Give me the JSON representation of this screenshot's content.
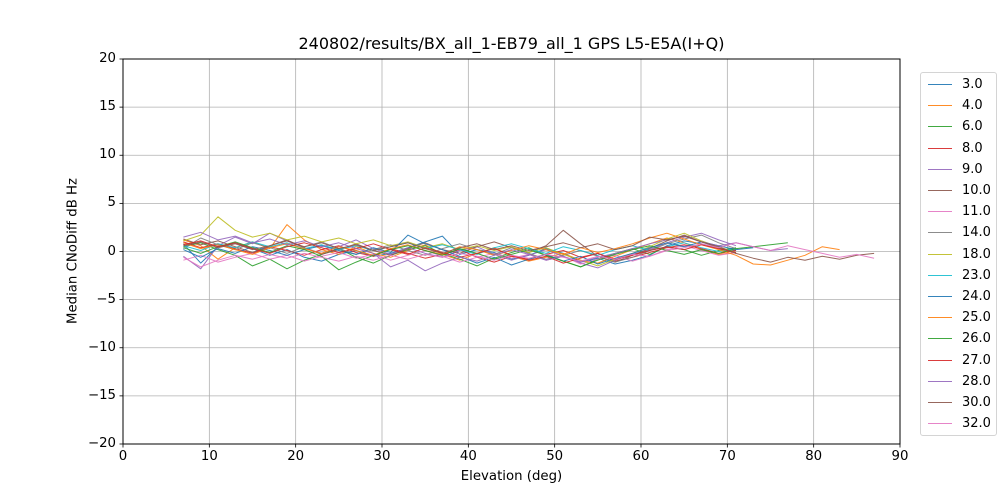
{
  "chart": {
    "title": "240802/results/BX_all_1-EB79_all_1 GPS L5-E5A(I+Q)",
    "xlabel": "Elevation (deg)",
    "ylabel": "Median CNoDiff dB Hz"
  },
  "colors": {
    "grid": "#b0b0b0",
    "spine": "#000000",
    "background": "#ffffff",
    "legend_border": "#d4d4d4"
  },
  "chart_data": {
    "type": "line",
    "title": "240802/results/BX_all_1-EB79_all_1 GPS L5-E5A(I+Q)",
    "xlabel": "Elevation (deg)",
    "ylabel": "Median CNoDiff dB Hz",
    "xlim": [
      0,
      90
    ],
    "ylim": [
      -20,
      20
    ],
    "x_ticks": [
      0,
      10,
      20,
      30,
      40,
      50,
      60,
      70,
      80,
      90
    ],
    "x_tick_labels": [
      "0",
      "10",
      "20",
      "30",
      "40",
      "50",
      "60",
      "70",
      "80",
      "90"
    ],
    "y_ticks": [
      -20,
      -15,
      -10,
      -5,
      0,
      5,
      10,
      15,
      20
    ],
    "y_tick_labels": [
      "−20",
      "−15",
      "−10",
      "−5",
      "0",
      "5",
      "10",
      "15",
      "20"
    ],
    "grid": true,
    "legend_position": "outside-right",
    "x_start": 7,
    "x_step": 2,
    "series": [
      {
        "name": "3.0",
        "color": "#1f77b4",
        "values": [
          0.8,
          -1.2,
          0.5,
          0.9,
          0.3,
          -0.4,
          0.2,
          -0.6,
          -1.0,
          -0.3,
          0.1,
          -0.5,
          -0.2,
          0.4,
          1.0,
          1.6,
          -0.3,
          0.2,
          -0.1,
          -0.8,
          -0.4,
          0.3,
          -0.2,
          -1.1,
          -0.7,
          -1.3,
          -0.9,
          -0.4,
          0.6,
          1.1,
          0.8,
          0.3,
          0.1
        ]
      },
      {
        "name": "4.0",
        "color": "#ff7f0e",
        "values": [
          1.2,
          0.6,
          -0.8,
          0.4,
          1.0,
          0.3,
          2.8,
          1.2,
          0.2,
          -0.3,
          0.5,
          -0.2,
          -0.6,
          0.1,
          0.7,
          -0.3,
          -0.9,
          -0.2,
          0.4,
          -0.5,
          -1.0,
          -0.6,
          -0.2,
          -0.9,
          -1.2,
          -0.5,
          0.2,
          0.8,
          1.4,
          0.9,
          0.2,
          -0.3,
          -0.1
        ]
      },
      {
        "name": "6.0",
        "color": "#2ca02c",
        "values": [
          0.5,
          0.9,
          0.2,
          -0.4,
          -1.5,
          -0.8,
          -1.8,
          -0.9,
          -0.3,
          0.3,
          -0.6,
          -1.2,
          -0.4,
          0.2,
          0.6,
          -0.2,
          -0.8,
          -1.5,
          -0.7,
          -0.1,
          0.4,
          -0.4,
          -1.0,
          -1.6,
          -0.8,
          -0.2,
          0.3,
          -0.3,
          0.5,
          0.2,
          -0.4,
          0.1,
          0.4
        ]
      },
      {
        "name": "8.0",
        "color": "#d62728",
        "values": [
          1.0,
          0.4,
          0.8,
          0.3,
          -0.2,
          0.5,
          0.1,
          -0.4,
          0.2,
          0.6,
          -0.1,
          -0.5,
          0.3,
          -0.2,
          -0.7,
          -0.3,
          0.2,
          -0.6,
          -1.1,
          -0.5,
          -0.8,
          -0.3,
          0.1,
          -0.6,
          -0.2,
          -1.0,
          -0.6,
          -0.1,
          0.4,
          0.7,
          0.3,
          -0.2,
          0.1
        ]
      },
      {
        "name": "9.0",
        "color": "#9467bd",
        "values": [
          -0.5,
          -1.8,
          0.6,
          1.5,
          0.8,
          1.9,
          1.1,
          0.4,
          -0.2,
          0.5,
          1.2,
          0.3,
          -0.3,
          0.4,
          -0.2,
          -0.6,
          0.1,
          0.5,
          -0.3,
          -0.9,
          -0.4,
          0.2,
          -0.5,
          -1.2,
          -1.7,
          -0.9,
          -0.3,
          0.2,
          0.9,
          1.5,
          1.9,
          1.2,
          0.6
        ]
      },
      {
        "name": "10.0",
        "color": "#8c564b",
        "values": [
          1.3,
          0.7,
          1.1,
          0.5,
          -0.1,
          0.6,
          1.2,
          0.4,
          -0.3,
          0.2,
          0.8,
          0.1,
          -0.4,
          0.3,
          0.9,
          0.2,
          -0.2,
          0.5,
          1.0,
          0.4,
          -0.1,
          0.6,
          2.2,
          0.8,
          -0.5,
          -1.1,
          -0.4,
          0.3,
          1.1,
          1.7,
          1.0,
          0.4,
          -0.2
        ]
      },
      {
        "name": "11.0",
        "color": "#e377c2",
        "values": [
          -0.9,
          -0.4,
          -1.1,
          -0.6,
          -0.2,
          -0.8,
          -0.4,
          -1.0,
          -0.5,
          -0.1,
          -0.7,
          -0.3,
          -0.9,
          -0.4,
          0.1,
          -0.5,
          -1.1,
          -0.6,
          -0.2,
          -0.7,
          -0.3,
          -0.9,
          -0.5,
          -1.3,
          -0.8,
          -0.4,
          -1.0,
          -0.5,
          0.2,
          0.6,
          0.1,
          -0.4,
          -0.1
        ]
      },
      {
        "name": "14.0",
        "color": "#7f7f7f",
        "values": [
          0.3,
          1.4,
          0.7,
          0.2,
          0.9,
          0.4,
          -0.2,
          0.5,
          1.0,
          0.3,
          -0.3,
          0.2,
          0.7,
          0.1,
          -0.4,
          0.3,
          0.8,
          0.2,
          -0.3,
          0.4,
          -0.2,
          -0.8,
          -0.4,
          0.1,
          -0.5,
          -1.1,
          -0.6,
          0.1,
          0.8,
          1.3,
          1.7,
          0.9,
          0.3
        ]
      },
      {
        "name": "18.0",
        "color": "#bcbd22",
        "values": [
          1.1,
          1.7,
          3.6,
          2.2,
          1.5,
          1.9,
          1.2,
          1.6,
          1.0,
          1.4,
          0.8,
          1.2,
          0.6,
          1.0,
          0.4,
          0.8,
          0.2,
          0.6,
          0.1,
          0.5,
          -0.1,
          0.4,
          -0.3,
          -0.9,
          -1.5,
          -0.8,
          -0.2,
          0.5,
          1.3,
          1.9,
          1.1,
          0.5,
          -0.1
        ]
      },
      {
        "name": "23.0",
        "color": "#17becf",
        "values": [
          0.6,
          0.1,
          0.8,
          0.4,
          1.0,
          0.5,
          0.9,
          0.3,
          0.7,
          0.2,
          0.6,
          0.1,
          0.5,
          0.9,
          0.3,
          0.7,
          0.2,
          -0.3,
          0.4,
          0.8,
          0.3,
          -0.2,
          0.5,
          0.1,
          -0.4,
          0.2,
          0.6,
          0.1,
          0.5,
          0.9,
          0.4,
          0.0,
          0.3
        ]
      },
      {
        "name": "24.0",
        "color": "#1f77b4",
        "values": [
          0.2,
          -0.6,
          0.3,
          -0.2,
          0.5,
          0.1,
          -0.4,
          0.2,
          0.6,
          0.1,
          -0.3,
          0.4,
          -0.1,
          1.7,
          0.8,
          0.2,
          -0.5,
          -1.2,
          -0.6,
          -1.4,
          -0.8,
          -0.3,
          -1.0,
          -0.5,
          -1.3,
          -0.7,
          -0.2,
          0.4,
          0.9,
          0.5,
          1.0,
          0.6,
          0.2,
          0.4
        ]
      },
      {
        "name": "25.0",
        "color": "#ff7f0e",
        "values": [
          0.9,
          0.3,
          0.7,
          0.2,
          -0.3,
          0.4,
          0.8,
          0.3,
          -0.2,
          0.5,
          0.1,
          -0.4,
          0.3,
          0.7,
          0.1,
          -0.3,
          0.5,
          0.2,
          -0.4,
          0.1,
          0.6,
          0.2,
          -0.3,
          0.4,
          -0.1,
          0.3,
          0.8,
          1.4,
          1.9,
          1.3,
          0.7,
          0.2,
          -0.4,
          -1.3,
          -1.4,
          -0.9,
          -0.4,
          0.5,
          0.2
        ]
      },
      {
        "name": "26.0",
        "color": "#2ca02c",
        "values": [
          0.4,
          -0.2,
          0.5,
          1.0,
          0.4,
          -0.1,
          0.6,
          0.2,
          -0.5,
          -1.9,
          -1.1,
          -0.4,
          0.2,
          0.6,
          0.1,
          -0.4,
          0.3,
          -0.2,
          -0.8,
          -0.3,
          0.2,
          -0.4,
          -1.0,
          -1.6,
          -0.9,
          -0.3,
          0.2,
          0.6,
          0.1,
          -0.3,
          0.2,
          -0.2,
          0.3,
          0.5,
          0.7,
          0.9
        ]
      },
      {
        "name": "27.0",
        "color": "#d62728",
        "values": [
          0.7,
          1.1,
          0.5,
          0.9,
          0.3,
          -0.2,
          0.5,
          0.9,
          0.4,
          -0.1,
          0.3,
          0.8,
          0.2,
          -0.3,
          0.4,
          -0.1,
          -0.6,
          -0.2,
          0.3,
          -0.4,
          -0.9,
          -0.5,
          -1.2,
          -0.7,
          -0.2,
          -0.8,
          -0.4,
          0.1,
          0.5,
          0.2,
          0.7,
          0.3,
          -0.1
        ]
      },
      {
        "name": "28.0",
        "color": "#9467bd",
        "values": [
          1.5,
          2.0,
          1.2,
          1.6,
          0.9,
          1.3,
          0.7,
          1.1,
          0.5,
          0.9,
          0.3,
          -0.2,
          -1.6,
          -0.9,
          -2.0,
          -1.2,
          -0.6,
          -1.0,
          -0.4,
          0.2,
          -0.3,
          -0.9,
          -0.5,
          -1.1,
          -0.6,
          -0.2,
          0.3,
          0.8,
          1.2,
          1.6,
          1.0,
          0.6,
          0.9,
          0.5,
          0.1,
          0.3
        ]
      },
      {
        "name": "30.0",
        "color": "#8c564b",
        "values": [
          0.6,
          1.0,
          0.4,
          0.8,
          0.2,
          0.6,
          1.1,
          0.5,
          0.9,
          0.3,
          0.7,
          0.1,
          0.5,
          0.9,
          0.3,
          -0.2,
          0.4,
          0.8,
          0.2,
          0.6,
          0.1,
          0.5,
          0.9,
          0.4,
          0.8,
          0.2,
          0.6,
          1.5,
          1.2,
          1.6,
          1.0,
          0.5,
          -0.2,
          -0.7,
          -1.1,
          -0.6,
          -0.9,
          -0.5,
          -0.8,
          -0.4,
          -0.2
        ]
      },
      {
        "name": "32.0",
        "color": "#e377c2",
        "values": [
          -0.6,
          -1.6,
          -0.9,
          -0.4,
          -0.8,
          -0.3,
          -0.7,
          -0.2,
          -0.6,
          -1.0,
          -0.5,
          -0.9,
          -0.4,
          -0.8,
          -0.3,
          -0.6,
          -0.2,
          -0.5,
          -0.9,
          -0.4,
          -0.7,
          -0.3,
          -0.6,
          -1.0,
          -0.5,
          -0.8,
          -0.3,
          -0.5,
          0.1,
          0.4,
          0.8,
          0.4,
          0.9,
          0.5,
          0.1,
          0.6,
          0.2,
          -0.2,
          -0.6,
          -0.3,
          -0.7
        ]
      }
    ]
  }
}
